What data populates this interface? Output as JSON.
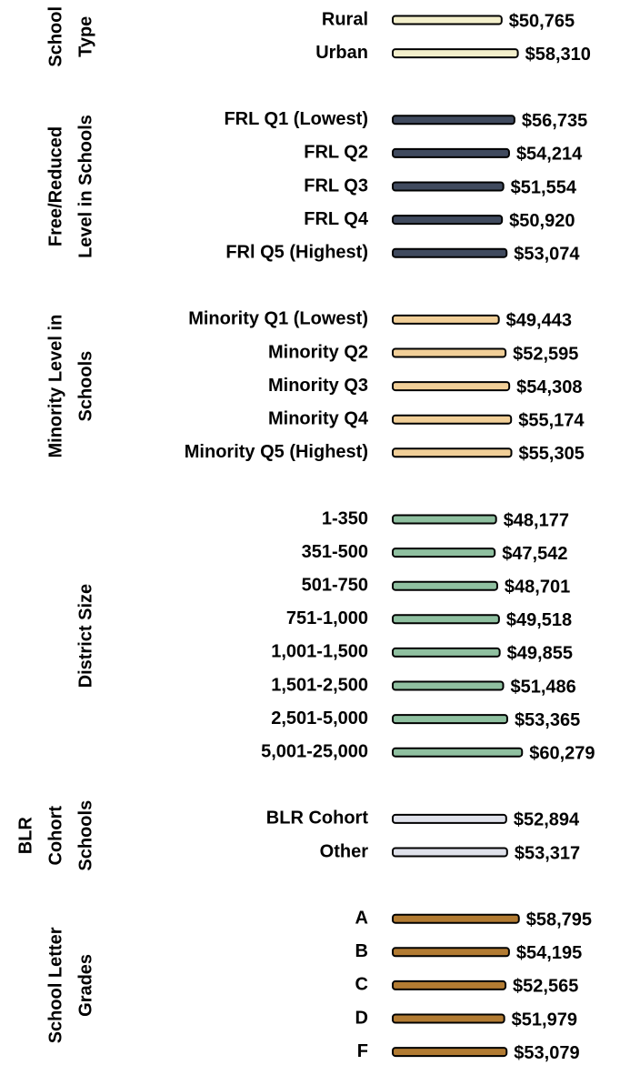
{
  "chart_data": {
    "type": "bar",
    "groups": [
      {
        "label_lines": [
          "School",
          "Type"
        ],
        "color": "#f3efcb",
        "categories": [
          "Rural",
          "Urban"
        ],
        "values": [
          50765,
          58310
        ],
        "value_labels": [
          "$50,765",
          "$58,310"
        ]
      },
      {
        "label_lines": [
          "Free/Reduced",
          "Level in Schools"
        ],
        "color": "#404a5e",
        "categories": [
          "FRL Q1 (Lowest)",
          "FRL Q2",
          "FRL Q3",
          "FRL Q4",
          "FRl Q5 (Highest)"
        ],
        "values": [
          56735,
          54214,
          51554,
          50920,
          53074
        ],
        "value_labels": [
          "$56,735",
          "$54,214",
          "$51,554",
          "$50,920",
          "$53,074"
        ]
      },
      {
        "label_lines": [
          "Minority Level in",
          "Schools"
        ],
        "color": "#f1cf98",
        "categories": [
          "Minority Q1 (Lowest)",
          "Minority Q2",
          "Minority Q3",
          "Minority Q4",
          "Minority Q5 (Highest)"
        ],
        "values": [
          49443,
          52595,
          54308,
          55174,
          55305
        ],
        "value_labels": [
          "$49,443",
          "$52,595",
          "$54,308",
          "$55,174",
          "$55,305"
        ]
      },
      {
        "label_lines": [
          "District Size"
        ],
        "color": "#8fc0a0",
        "categories": [
          "1-350",
          "351-500",
          "501-750",
          "751-1,000",
          "1,001-1,500",
          "1,501-2,500",
          "2,501-5,000",
          "5,001-25,000"
        ],
        "values": [
          48177,
          47542,
          48701,
          49518,
          49855,
          51486,
          53365,
          60279
        ],
        "value_labels": [
          "$48,177",
          "$47,542",
          "$48,701",
          "$49,518",
          "$49,855",
          "$51,486",
          "$53,365",
          "$60,279"
        ]
      },
      {
        "label_lines": [
          "BLR",
          "Cohort",
          "Schools"
        ],
        "color": "#dfe1ea",
        "categories": [
          "BLR Cohort",
          "Other"
        ],
        "values": [
          52894,
          53317
        ],
        "value_labels": [
          "$52,894",
          "$53,317"
        ]
      },
      {
        "label_lines": [
          "School Letter",
          "Grades"
        ],
        "color": "#b27b32",
        "categories": [
          "A",
          "B",
          "C",
          "D",
          "F"
        ],
        "values": [
          58795,
          54195,
          52565,
          51979,
          53079
        ],
        "value_labels": [
          "$58,795",
          "$54,195",
          "$52,565",
          "$51,979",
          "$53,079"
        ]
      }
    ]
  }
}
